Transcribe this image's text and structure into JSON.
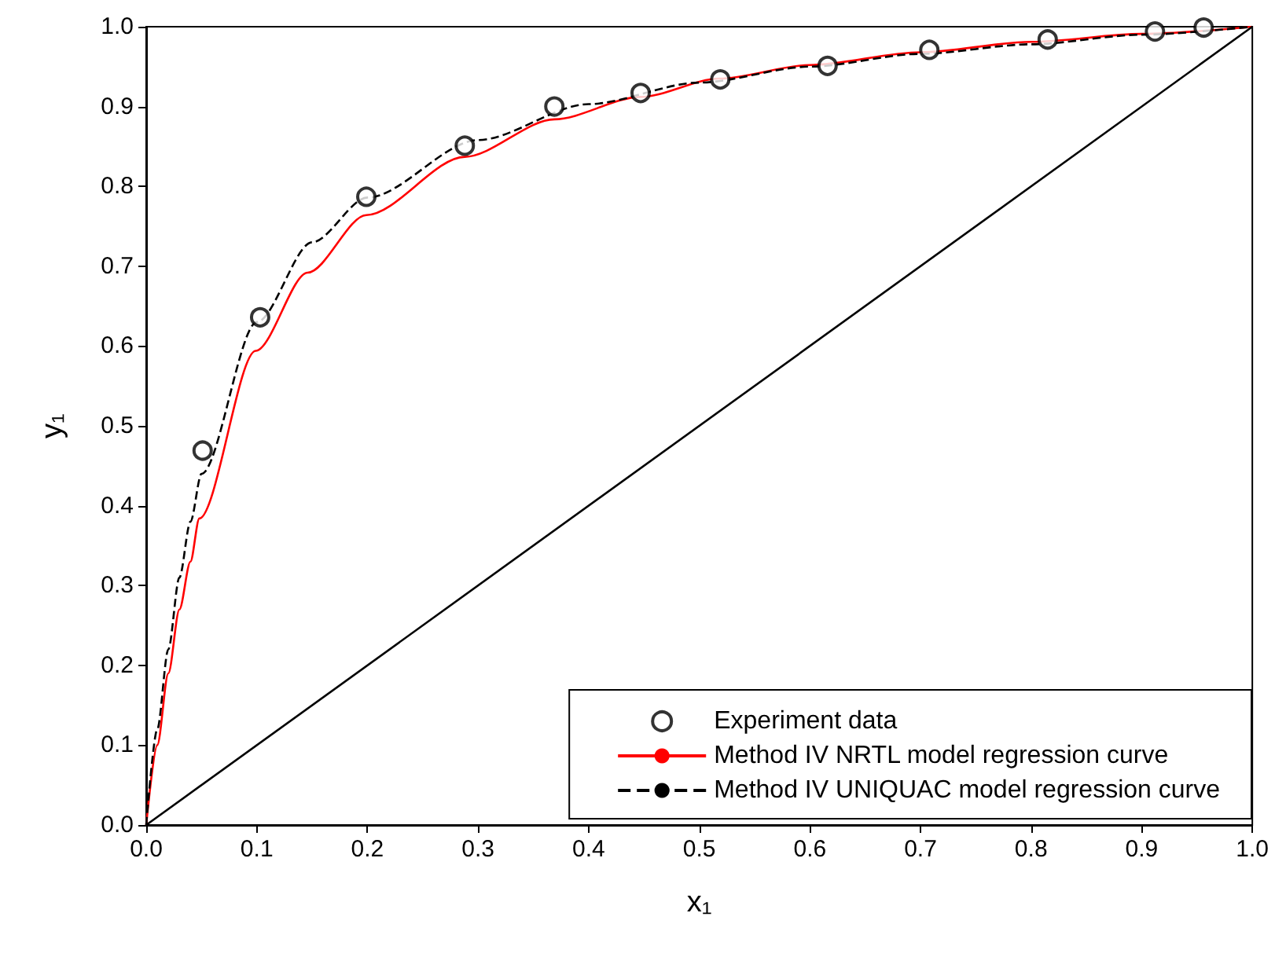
{
  "chart_data": {
    "type": "line",
    "xlabel": "x₁",
    "ylabel": "y₁",
    "xlim": [
      0,
      1
    ],
    "ylim": [
      0,
      1
    ],
    "xticks": [
      {
        "value": 0,
        "label": "0.0"
      },
      0.1,
      0.2,
      0.3,
      0.4,
      0.5,
      0.6,
      0.7,
      0.8,
      0.9,
      {
        "value": 1,
        "label": "1.0"
      }
    ],
    "yticks": [
      {
        "value": 0,
        "label": "0.0"
      },
      0.1,
      0.2,
      0.3,
      0.4,
      0.5,
      0.6,
      0.7,
      0.8,
      0.9,
      {
        "value": 1,
        "label": "1.0"
      }
    ],
    "grid": false,
    "legend": "bottom right",
    "series": [
      {
        "name": "Experiment data",
        "type": "scatter",
        "marker": "circle",
        "color": "#000000",
        "x": [
          0.051,
          0.103,
          0.199,
          0.288,
          0.369,
          0.447,
          0.519,
          0.616,
          0.708,
          0.815,
          0.912,
          0.956
        ],
        "values": [
          0.469,
          0.636,
          0.787,
          0.851,
          0.9,
          0.917,
          0.934,
          0.951,
          0.971,
          0.984,
          0.994,
          0.999
        ]
      },
      {
        "name": "Method IV NRTL model regression curve",
        "line_style": "solid",
        "color": "#ff0000",
        "x": [
          0,
          0.01,
          0.02,
          0.03,
          0.04,
          0.048,
          0.099,
          0.146,
          0.199,
          0.288,
          0.369,
          0.447,
          0.518,
          0.6,
          0.7,
          0.8,
          0.9,
          1
        ],
        "values": [
          0,
          0.1,
          0.19,
          0.27,
          0.33,
          0.384,
          0.594,
          0.692,
          0.764,
          0.837,
          0.884,
          0.912,
          0.935,
          0.952,
          0.968,
          0.981,
          0.991,
          1
        ]
      },
      {
        "name": "Method IV UNIQUAC model regression curve",
        "line_style": "dashed",
        "color": "#000000",
        "x": [
          0,
          0.01,
          0.02,
          0.03,
          0.04,
          0.05,
          0.1,
          0.15,
          0.2,
          0.3,
          0.4,
          0.5,
          0.6,
          0.7,
          0.8,
          0.9,
          1
        ],
        "values": [
          0,
          0.12,
          0.22,
          0.31,
          0.38,
          0.44,
          0.63,
          0.73,
          0.786,
          0.858,
          0.903,
          0.93,
          0.95,
          0.966,
          0.978,
          0.99,
          1
        ]
      },
      {
        "line_style": "solid",
        "color": "#000000",
        "x": [
          0,
          1
        ],
        "values": [
          0,
          1
        ]
      }
    ]
  }
}
